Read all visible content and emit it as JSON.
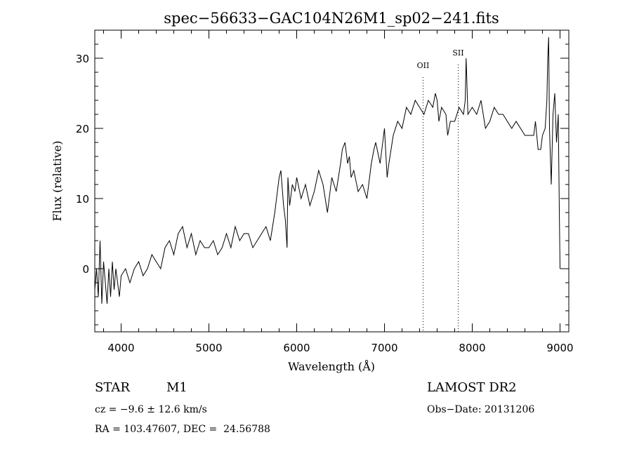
{
  "chart_data": {
    "type": "line",
    "title": "spec−56633−GAC104N26M1_sp02−241.fits",
    "xlabel": "Wavelength (Å)",
    "ylabel": "Flux (relative)",
    "xlim": [
      3700,
      9100
    ],
    "ylim": [
      -9,
      34
    ],
    "xticks": [
      4000,
      5000,
      6000,
      7000,
      8000,
      9000
    ],
    "yticks": [
      0,
      10,
      20,
      30
    ],
    "grid": false,
    "emission_lines": [
      {
        "name": "OII",
        "wavelength": 7440
      },
      {
        "name": "SII",
        "wavelength": 7840
      }
    ],
    "series": [
      {
        "x": [
          3700,
          3720,
          3740,
          3760,
          3780,
          3800,
          3820,
          3840,
          3860,
          3880,
          3900,
          3920,
          3940,
          3960,
          3980,
          4000,
          4050,
          4100,
          4150,
          4200,
          4250,
          4300,
          4350,
          4400,
          4450,
          4500,
          4550,
          4600,
          4650,
          4700,
          4750,
          4800,
          4850,
          4900,
          4950,
          5000,
          5050,
          5100,
          5150,
          5200,
          5250,
          5300,
          5350,
          5400,
          5450,
          5500,
          5550,
          5600,
          5650,
          5700,
          5750,
          5800,
          5820,
          5850,
          5870,
          5890,
          5900,
          5920,
          5950,
          5980,
          6000,
          6050,
          6100,
          6150,
          6200,
          6250,
          6300,
          6350,
          6400,
          6450,
          6500,
          6520,
          6550,
          6580,
          6600,
          6620,
          6650,
          6700,
          6750,
          6800,
          6850,
          6880,
          6900,
          6950,
          7000,
          7030,
          7050,
          7100,
          7150,
          7200,
          7250,
          7300,
          7350,
          7400,
          7450,
          7500,
          7550,
          7580,
          7600,
          7620,
          7650,
          7700,
          7720,
          7750,
          7800,
          7850,
          7900,
          7920,
          7930,
          7950,
          8000,
          8050,
          8100,
          8150,
          8200,
          8250,
          8300,
          8350,
          8400,
          8450,
          8500,
          8550,
          8600,
          8650,
          8700,
          8720,
          8750,
          8780,
          8800,
          8830,
          8850,
          8860,
          8870,
          8880,
          8900,
          8920,
          8940,
          8960,
          8980,
          8990,
          9000
        ],
        "y": [
          -3,
          0,
          -4,
          4,
          -5,
          1,
          -2,
          -5,
          0,
          -4,
          1,
          -3,
          0,
          -2,
          -4,
          -1,
          0,
          -2,
          0,
          1,
          -1,
          0,
          2,
          1,
          0,
          3,
          4,
          2,
          5,
          6,
          3,
          5,
          2,
          4,
          3,
          3,
          4,
          2,
          3,
          5,
          3,
          6,
          4,
          5,
          5,
          3,
          4,
          5,
          6,
          4,
          8,
          13,
          14,
          9,
          7,
          3,
          13,
          9,
          12,
          11,
          13,
          10,
          12,
          9,
          11,
          14,
          12,
          8,
          13,
          11,
          15,
          17,
          18,
          15,
          16,
          13,
          14,
          11,
          12,
          10,
          15,
          17,
          18,
          15,
          20,
          13,
          15,
          19,
          21,
          20,
          23,
          22,
          24,
          23,
          22,
          24,
          23,
          25,
          24,
          21,
          23,
          22,
          19,
          21,
          21,
          23,
          22,
          24,
          30,
          22,
          23,
          22,
          24,
          20,
          21,
          23,
          22,
          22,
          21,
          20,
          21,
          20,
          19,
          19,
          19,
          21,
          17,
          17,
          19,
          20,
          24,
          30,
          33,
          20,
          12,
          22,
          25,
          18,
          22,
          10,
          0
        ]
      }
    ]
  },
  "info": {
    "object_class": "STAR",
    "subclass": "M1",
    "redshift": "cz = −9.6 ± 12.6 km/s",
    "coordinates": "RA = 103.47607, DEC =  24.56788",
    "survey": "LAMOST DR2",
    "obs_date": "Obs−Date: 20131206"
  }
}
